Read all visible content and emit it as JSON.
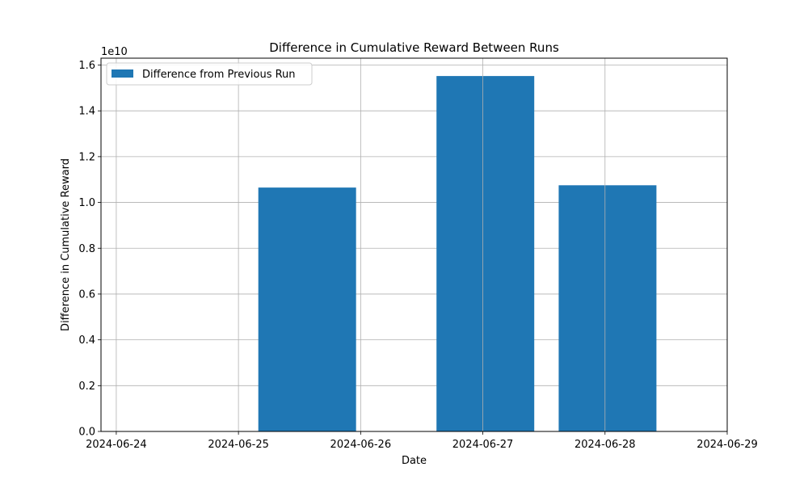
{
  "chart_data": {
    "type": "bar",
    "title": "Difference in Cumulative Reward Between Runs",
    "xlabel": "Date",
    "ylabel": "Difference in Cumulative Reward",
    "y_offset_label": "1e10",
    "y_scale": 10000000000,
    "ylim": [
      0,
      16300000000
    ],
    "xlim": [
      "2024-06-23T21:00",
      "2024-06-29T00:00"
    ],
    "x_ticks": [
      "2024-06-24",
      "2024-06-25",
      "2024-06-26",
      "2024-06-27",
      "2024-06-28",
      "2024-06-29"
    ],
    "y_ticks": [
      0,
      2000000000,
      4000000000,
      6000000000,
      8000000000,
      10000000000,
      12000000000,
      14000000000,
      16000000000
    ],
    "y_tick_labels": [
      "0.0",
      "0.2",
      "0.4",
      "0.6",
      "0.8",
      "1.0",
      "1.2",
      "1.4",
      "1.6"
    ],
    "bar_width_days": 0.8,
    "series": [
      {
        "name": "Difference from Previous Run",
        "color": "#1f77b4",
        "points": [
          {
            "x": "2024-06-25T13:30",
            "value": 10650000000
          },
          {
            "x": "2024-06-27T00:30",
            "value": 15520000000
          },
          {
            "x": "2024-06-28T00:30",
            "value": 10750000000
          }
        ]
      }
    ],
    "grid": true,
    "legend": "top-left"
  }
}
